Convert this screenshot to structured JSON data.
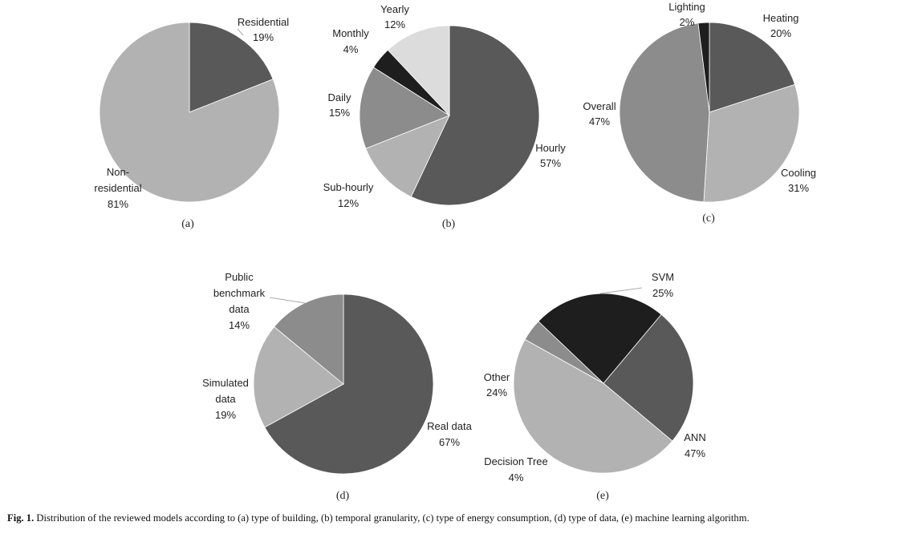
{
  "figure": {
    "caption_id": "Fig. 1.",
    "caption_text": "Distribution of the reviewed models according to (a) type of building, (b) temporal granularity, (c) type of energy consumption, (d) type of data, (e) machine learning algorithm."
  },
  "chart_data": [
    {
      "type": "pie",
      "panel": "(a)",
      "title": "type of building",
      "slices": [
        {
          "name": "Residential",
          "value": 19,
          "label": "19%",
          "color": "#595959"
        },
        {
          "name": "Non-residential",
          "value": 81,
          "label": "81%",
          "color": "#b2b2b2"
        }
      ]
    },
    {
      "type": "pie",
      "panel": "(b)",
      "title": "temporal granularity",
      "slices": [
        {
          "name": "Hourly",
          "value": 57,
          "label": "57%",
          "color": "#595959"
        },
        {
          "name": "Sub-hourly",
          "value": 12,
          "label": "12%",
          "color": "#b2b2b2"
        },
        {
          "name": "Daily",
          "value": 15,
          "label": "15%",
          "color": "#8c8c8c"
        },
        {
          "name": "Monthly",
          "value": 4,
          "label": "4%",
          "color": "#1e1e1e"
        },
        {
          "name": "Yearly",
          "value": 12,
          "label": "12%",
          "color": "#dcdcdc"
        }
      ]
    },
    {
      "type": "pie",
      "panel": "(c)",
      "title": "type of energy consumption",
      "slices": [
        {
          "name": "Heating",
          "value": 20,
          "label": "20%",
          "color": "#595959"
        },
        {
          "name": "Cooling",
          "value": 31,
          "label": "31%",
          "color": "#b2b2b2"
        },
        {
          "name": "Overall",
          "value": 47,
          "label": "47%",
          "color": "#8c8c8c"
        },
        {
          "name": "Lighting",
          "value": 2,
          "label": "2%",
          "color": "#1e1e1e"
        }
      ]
    },
    {
      "type": "pie",
      "panel": "(d)",
      "title": "type of data",
      "slices": [
        {
          "name": "Real data",
          "value": 67,
          "label": "67%",
          "color": "#595959"
        },
        {
          "name": "Simulated data",
          "value": 19,
          "label": "19%",
          "color": "#b2b2b2"
        },
        {
          "name": "Public benchmark data",
          "value": 14,
          "label": "14%",
          "color": "#8c8c8c"
        }
      ]
    },
    {
      "type": "pie",
      "panel": "(e)",
      "title": "machine learning algorithm",
      "slices": [
        {
          "name": "SVM",
          "value": 25,
          "label": "25%",
          "color": "#595959"
        },
        {
          "name": "ANN",
          "value": 47,
          "label": "47%",
          "color": "#b2b2b2"
        },
        {
          "name": "Decision Tree",
          "value": 4,
          "label": "4%",
          "color": "#8c8c8c"
        },
        {
          "name": "Other",
          "value": 24,
          "label": "24%",
          "color": "#1e1e1e"
        }
      ]
    }
  ]
}
